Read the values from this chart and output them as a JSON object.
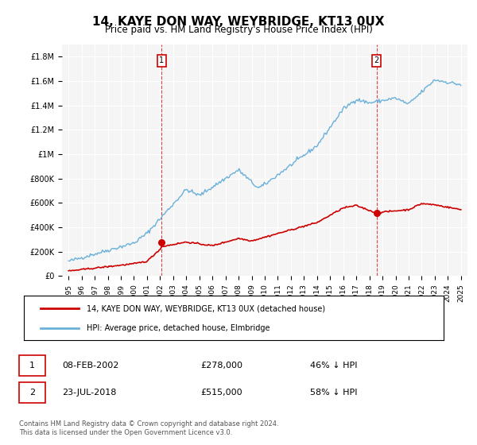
{
  "title": "14, KAYE DON WAY, WEYBRIDGE, KT13 0UX",
  "subtitle": "Price paid vs. HM Land Registry's House Price Index (HPI)",
  "hpi_label": "HPI: Average price, detached house, Elmbridge",
  "property_label": "14, KAYE DON WAY, WEYBRIDGE, KT13 0UX (detached house)",
  "sale1_date": "08-FEB-2002",
  "sale1_price": 278000,
  "sale1_pct": "46% ↓ HPI",
  "sale2_date": "23-JUL-2018",
  "sale2_price": 515000,
  "sale2_pct": "58% ↓ HPI",
  "footer": "Contains HM Land Registry data © Crown copyright and database right 2024.\nThis data is licensed under the Open Government Licence v3.0.",
  "ylim": [
    0,
    1900000
  ],
  "hpi_color": "#6ab0d8",
  "property_color": "#cc0000",
  "sale_marker_color": "#cc0000",
  "dashed_color": "#cc0000",
  "background_plot": "#f5f5f5",
  "background_fig": "#ffffff",
  "grid_color": "#ffffff",
  "sale1_x": 2002.1,
  "sale2_x": 2018.55
}
